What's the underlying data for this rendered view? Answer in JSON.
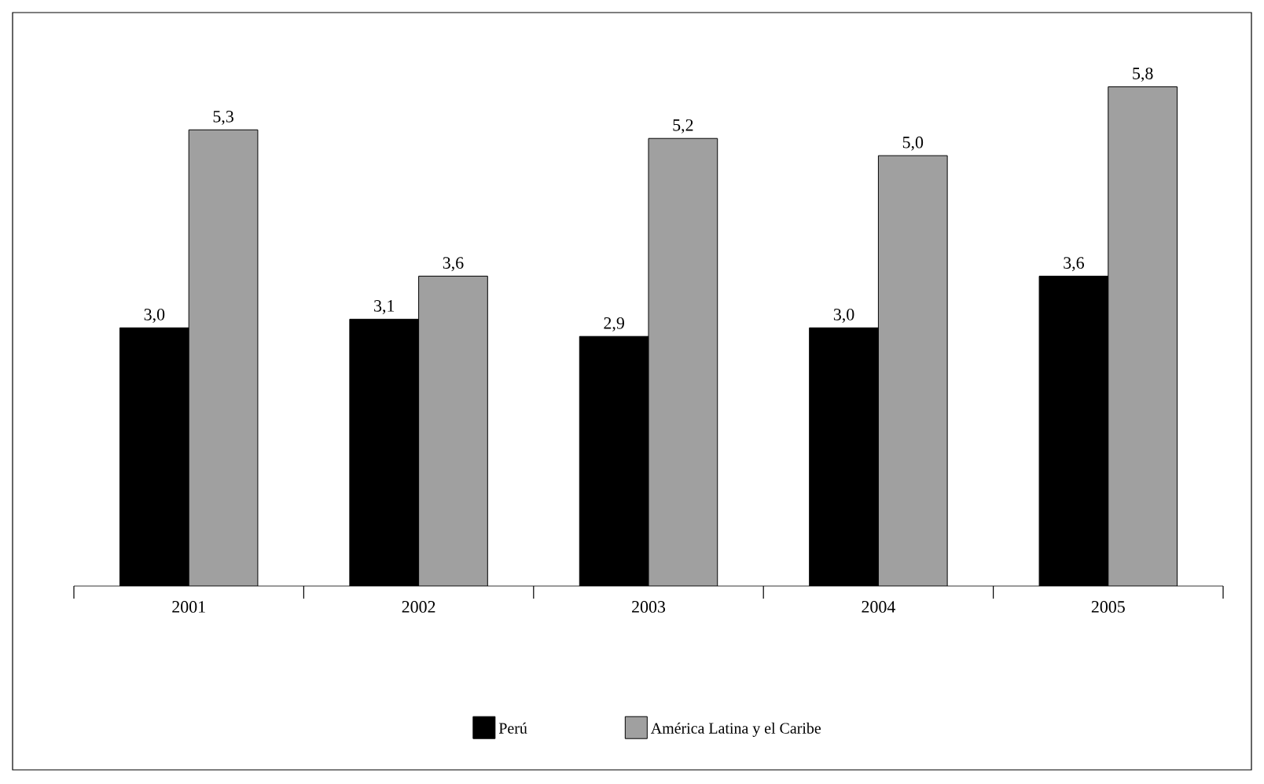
{
  "chart_data": {
    "type": "bar",
    "categories": [
      "2001",
      "2002",
      "2003",
      "2004",
      "2005"
    ],
    "series": [
      {
        "name": "Perú",
        "color": "#000000",
        "values": [
          3.0,
          3.1,
          2.9,
          3.0,
          3.6
        ],
        "value_labels": [
          "3,0",
          "3,1",
          "2,9",
          "3,0",
          "3,6"
        ]
      },
      {
        "name": "América Latina y el Caribe",
        "color": "#a0a0a0",
        "values": [
          5.3,
          3.6,
          5.2,
          5.0,
          5.8
        ],
        "value_labels": [
          "5,3",
          "3,6",
          "5,2",
          "5,0",
          "5,8"
        ]
      }
    ],
    "legend": "bottom",
    "grid": false
  }
}
